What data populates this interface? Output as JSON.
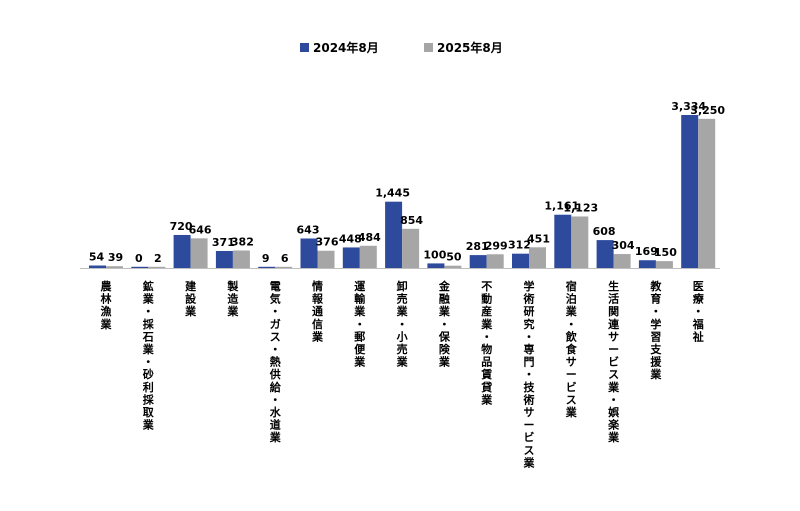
{
  "chart_data": {
    "type": "bar",
    "title": "",
    "xlabel": "",
    "ylabel": "",
    "ylim": [
      0,
      3600
    ],
    "legend_position": "top-center",
    "grid": false,
    "colors": {
      "series_2024": "#2e4a9c",
      "series_2025": "#a6a6a6",
      "baseline": "#bfbfbf"
    },
    "categories": [
      "農林漁業",
      "鉱業・採石業・砂利採取業",
      "建設業",
      "製造業",
      "電気・ガス・熱供給・水道業",
      "情報通信業",
      "運輸業・郵便業",
      "卸売業・小売業",
      "金融業・保険業",
      "不動産業・物品賃貸業",
      "学術研究・専門・技術サービス業",
      "宿泊業・飲食サービス業",
      "生活関連サービス業・娯楽業",
      "教育・学習支援業",
      "医療・福祉"
    ],
    "series": [
      {
        "name": "2024年8月",
        "values": [
          54,
          0,
          720,
          371,
          9,
          643,
          448,
          1445,
          100,
          281,
          312,
          1161,
          608,
          169,
          3334
        ],
        "labels": [
          "54",
          "0",
          "720",
          "371",
          "9",
          "643",
          "448",
          "1,445",
          "100",
          "281",
          "312",
          "1,161",
          "608",
          "169",
          "3,334"
        ]
      },
      {
        "name": "2025年8月",
        "values": [
          39,
          2,
          646,
          382,
          6,
          376,
          484,
          854,
          50,
          299,
          451,
          1123,
          304,
          150,
          3250
        ],
        "labels": [
          "39",
          "2",
          "646",
          "382",
          "6",
          "376",
          "484",
          "854",
          "50",
          "299",
          "451",
          "1,123",
          "304",
          "150",
          "3,250"
        ]
      }
    ]
  }
}
